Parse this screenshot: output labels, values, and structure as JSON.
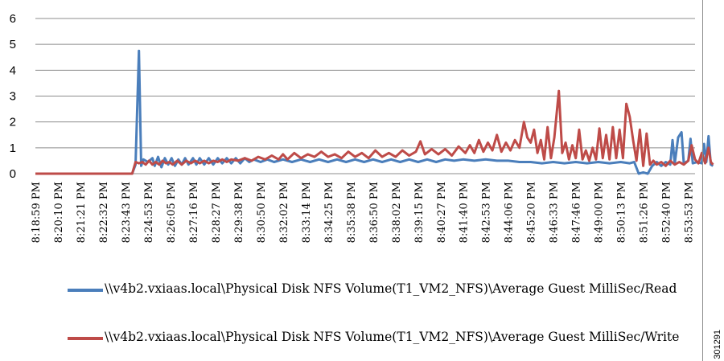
{
  "figure_id": "301291",
  "chart_data": {
    "type": "line",
    "title": "",
    "xlabel": "",
    "ylabel": "",
    "ylim": [
      0,
      6
    ],
    "yticks": [
      0,
      1,
      2,
      3,
      4,
      5,
      6
    ],
    "grid": "horizontal",
    "legend_position": "bottom",
    "x_tick_labels": [
      "8:18:59 PM",
      "8:20:10 PM",
      "8:21:21 PM",
      "8:22:32 PM",
      "8:23:43 PM",
      "8:24:53 PM",
      "8:26:05 PM",
      "8:27:16 PM",
      "8:28:27 PM",
      "8:29:38 PM",
      "8:30:50 PM",
      "8:32:02 PM",
      "8:33:14 PM",
      "8:34:25 PM",
      "8:35:38 PM",
      "8:36:50 PM",
      "8:38:02 PM",
      "8:39:15 PM",
      "8:40:27 PM",
      "8:41:40 PM",
      "8:42:53 PM",
      "8:44:06 PM",
      "8:45:20 PM",
      "8:46:33 PM",
      "8:47:46 PM",
      "8:49:00 PM",
      "8:50:13 PM",
      "8:51:26 PM",
      "8:52:40 PM",
      "8:53:53 PM"
    ],
    "series": [
      {
        "name": "\\\\v4b2.vxiaas.local\\Physical Disk NFS Volume(T1_VM2_NFS)\\Average Guest MilliSec/Read",
        "color": "#4a7ebb",
        "points": [
          [
            0,
            0
          ],
          [
            4.3,
            0
          ],
          [
            4.45,
            0.35
          ],
          [
            4.6,
            4.75
          ],
          [
            4.7,
            0.3
          ],
          [
            4.8,
            0.55
          ],
          [
            5.0,
            0.45
          ],
          [
            5.2,
            0.6
          ],
          [
            5.3,
            0.3
          ],
          [
            5.45,
            0.65
          ],
          [
            5.6,
            0.25
          ],
          [
            5.75,
            0.6
          ],
          [
            5.9,
            0.35
          ],
          [
            6.05,
            0.6
          ],
          [
            6.2,
            0.3
          ],
          [
            6.35,
            0.55
          ],
          [
            6.5,
            0.35
          ],
          [
            6.65,
            0.6
          ],
          [
            6.8,
            0.35
          ],
          [
            7.0,
            0.6
          ],
          [
            7.15,
            0.35
          ],
          [
            7.3,
            0.6
          ],
          [
            7.5,
            0.35
          ],
          [
            7.7,
            0.6
          ],
          [
            7.9,
            0.35
          ],
          [
            8.1,
            0.6
          ],
          [
            8.3,
            0.4
          ],
          [
            8.5,
            0.6
          ],
          [
            8.7,
            0.4
          ],
          [
            8.9,
            0.6
          ],
          [
            9.1,
            0.4
          ],
          [
            9.3,
            0.6
          ],
          [
            9.5,
            0.45
          ],
          [
            9.7,
            0.55
          ],
          [
            10,
            0.45
          ],
          [
            10.3,
            0.55
          ],
          [
            10.6,
            0.45
          ],
          [
            11,
            0.55
          ],
          [
            11.4,
            0.45
          ],
          [
            11.8,
            0.55
          ],
          [
            12.2,
            0.45
          ],
          [
            12.6,
            0.55
          ],
          [
            13,
            0.45
          ],
          [
            13.4,
            0.55
          ],
          [
            13.8,
            0.45
          ],
          [
            14.2,
            0.55
          ],
          [
            14.6,
            0.45
          ],
          [
            15,
            0.55
          ],
          [
            15.4,
            0.45
          ],
          [
            15.8,
            0.55
          ],
          [
            16.2,
            0.45
          ],
          [
            16.6,
            0.55
          ],
          [
            17,
            0.45
          ],
          [
            17.4,
            0.55
          ],
          [
            17.8,
            0.45
          ],
          [
            18.2,
            0.55
          ],
          [
            18.6,
            0.5
          ],
          [
            19,
            0.55
          ],
          [
            19.5,
            0.5
          ],
          [
            20,
            0.55
          ],
          [
            20.5,
            0.5
          ],
          [
            21,
            0.5
          ],
          [
            21.5,
            0.45
          ],
          [
            22,
            0.45
          ],
          [
            22.5,
            0.4
          ],
          [
            23,
            0.45
          ],
          [
            23.5,
            0.4
          ],
          [
            24,
            0.45
          ],
          [
            24.5,
            0.4
          ],
          [
            25,
            0.45
          ],
          [
            25.5,
            0.4
          ],
          [
            26,
            0.45
          ],
          [
            26.4,
            0.4
          ],
          [
            26.6,
            0.45
          ],
          [
            26.8,
            0
          ],
          [
            27.0,
            0.05
          ],
          [
            27.2,
            0
          ],
          [
            27.4,
            0.3
          ],
          [
            27.6,
            0.45
          ],
          [
            27.8,
            0.3
          ],
          [
            28.0,
            0.45
          ],
          [
            28.2,
            0.35
          ],
          [
            28.3,
            1.3
          ],
          [
            28.4,
            0.4
          ],
          [
            28.55,
            1.4
          ],
          [
            28.7,
            1.6
          ],
          [
            28.8,
            0.4
          ],
          [
            29.0,
            0.5
          ],
          [
            29.1,
            1.35
          ],
          [
            29.2,
            0.4
          ],
          [
            29.4,
            0.45
          ],
          [
            29.6,
            0.4
          ],
          [
            29.7,
            1.15
          ],
          [
            29.8,
            0.45
          ],
          [
            29.9,
            1.45
          ],
          [
            30.0,
            0.35
          ],
          [
            30.1,
            0.3
          ]
        ]
      },
      {
        "name": "\\\\v4b2.vxiaas.local\\Physical Disk NFS Volume(T1_VM2_NFS)\\Average Guest MilliSec/Write",
        "color": "#be4b48",
        "points": [
          [
            0,
            0
          ],
          [
            4.3,
            0
          ],
          [
            4.45,
            0.45
          ],
          [
            4.6,
            0.4
          ],
          [
            4.75,
            0.45
          ],
          [
            4.9,
            0.35
          ],
          [
            5.05,
            0.5
          ],
          [
            5.2,
            0.35
          ],
          [
            5.35,
            0.45
          ],
          [
            5.5,
            0.35
          ],
          [
            5.65,
            0.5
          ],
          [
            5.8,
            0.4
          ],
          [
            5.95,
            0.45
          ],
          [
            6.1,
            0.35
          ],
          [
            6.3,
            0.5
          ],
          [
            6.5,
            0.35
          ],
          [
            6.7,
            0.5
          ],
          [
            6.9,
            0.4
          ],
          [
            7.1,
            0.5
          ],
          [
            7.3,
            0.4
          ],
          [
            7.5,
            0.5
          ],
          [
            7.7,
            0.4
          ],
          [
            7.9,
            0.5
          ],
          [
            8.1,
            0.45
          ],
          [
            8.3,
            0.55
          ],
          [
            8.5,
            0.45
          ],
          [
            8.7,
            0.55
          ],
          [
            9.0,
            0.5
          ],
          [
            9.3,
            0.6
          ],
          [
            9.6,
            0.5
          ],
          [
            9.9,
            0.65
          ],
          [
            10.2,
            0.55
          ],
          [
            10.5,
            0.7
          ],
          [
            10.8,
            0.55
          ],
          [
            11.0,
            0.75
          ],
          [
            11.2,
            0.55
          ],
          [
            11.5,
            0.8
          ],
          [
            11.8,
            0.6
          ],
          [
            12.1,
            0.75
          ],
          [
            12.4,
            0.65
          ],
          [
            12.7,
            0.85
          ],
          [
            13.0,
            0.65
          ],
          [
            13.3,
            0.75
          ],
          [
            13.6,
            0.6
          ],
          [
            13.9,
            0.85
          ],
          [
            14.2,
            0.65
          ],
          [
            14.5,
            0.8
          ],
          [
            14.8,
            0.6
          ],
          [
            15.1,
            0.9
          ],
          [
            15.4,
            0.65
          ],
          [
            15.7,
            0.8
          ],
          [
            16.0,
            0.65
          ],
          [
            16.3,
            0.9
          ],
          [
            16.6,
            0.7
          ],
          [
            16.9,
            0.85
          ],
          [
            17.1,
            1.25
          ],
          [
            17.3,
            0.75
          ],
          [
            17.6,
            0.95
          ],
          [
            17.9,
            0.75
          ],
          [
            18.2,
            0.95
          ],
          [
            18.5,
            0.7
          ],
          [
            18.8,
            1.05
          ],
          [
            19.1,
            0.8
          ],
          [
            19.3,
            1.1
          ],
          [
            19.5,
            0.8
          ],
          [
            19.7,
            1.3
          ],
          [
            19.9,
            0.85
          ],
          [
            20.1,
            1.2
          ],
          [
            20.3,
            0.9
          ],
          [
            20.5,
            1.5
          ],
          [
            20.7,
            0.85
          ],
          [
            20.9,
            1.2
          ],
          [
            21.1,
            0.9
          ],
          [
            21.3,
            1.3
          ],
          [
            21.5,
            1.0
          ],
          [
            21.7,
            2.0
          ],
          [
            21.85,
            1.4
          ],
          [
            22.0,
            1.2
          ],
          [
            22.15,
            1.7
          ],
          [
            22.3,
            0.8
          ],
          [
            22.45,
            1.3
          ],
          [
            22.6,
            0.55
          ],
          [
            22.75,
            1.8
          ],
          [
            22.9,
            0.6
          ],
          [
            23.05,
            1.4
          ],
          [
            23.25,
            3.2
          ],
          [
            23.4,
            0.8
          ],
          [
            23.55,
            1.2
          ],
          [
            23.7,
            0.55
          ],
          [
            23.85,
            1.1
          ],
          [
            24.0,
            0.6
          ],
          [
            24.15,
            1.7
          ],
          [
            24.3,
            0.55
          ],
          [
            24.45,
            0.9
          ],
          [
            24.6,
            0.5
          ],
          [
            24.75,
            1.0
          ],
          [
            24.9,
            0.55
          ],
          [
            25.05,
            1.75
          ],
          [
            25.2,
            0.6
          ],
          [
            25.35,
            1.5
          ],
          [
            25.5,
            0.55
          ],
          [
            25.65,
            1.8
          ],
          [
            25.8,
            0.6
          ],
          [
            25.95,
            1.7
          ],
          [
            26.1,
            0.6
          ],
          [
            26.25,
            2.7
          ],
          [
            26.4,
            2.2
          ],
          [
            26.55,
            1.3
          ],
          [
            26.7,
            0.5
          ],
          [
            26.85,
            1.7
          ],
          [
            27.0,
            0.3
          ],
          [
            27.15,
            1.55
          ],
          [
            27.3,
            0.35
          ],
          [
            27.45,
            0.5
          ],
          [
            27.6,
            0.35
          ],
          [
            27.8,
            0.45
          ],
          [
            28.0,
            0.3
          ],
          [
            28.2,
            0.5
          ],
          [
            28.4,
            0.35
          ],
          [
            28.6,
            0.45
          ],
          [
            28.8,
            0.35
          ],
          [
            29.0,
            0.5
          ],
          [
            29.15,
            1.1
          ],
          [
            29.3,
            0.55
          ],
          [
            29.45,
            0.4
          ],
          [
            29.6,
            0.8
          ],
          [
            29.75,
            0.4
          ],
          [
            29.9,
            1.0
          ],
          [
            30.0,
            0.45
          ],
          [
            30.1,
            0.35
          ]
        ]
      }
    ]
  }
}
